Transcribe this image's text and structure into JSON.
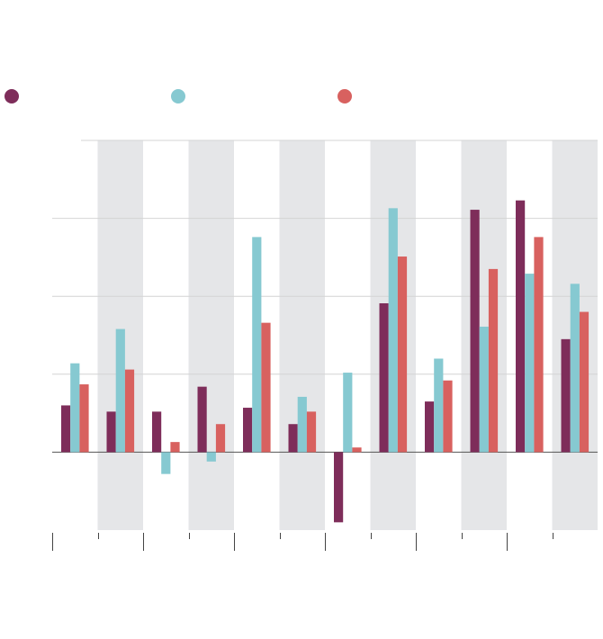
{
  "chart_data": {
    "type": "bar",
    "categories": [
      null,
      null,
      null,
      null,
      null,
      null,
      null,
      null,
      null,
      null,
      null,
      null
    ],
    "series": [
      {
        "color": "#7e2d5a",
        "values": [
          0.6,
          0.52,
          0.52,
          0.84,
          0.57,
          0.36,
          -0.9,
          1.91,
          0.65,
          3.11,
          3.23,
          1.45
        ]
      },
      {
        "color": "#86c9d1",
        "values": [
          1.14,
          1.58,
          -0.28,
          -0.12,
          2.76,
          0.71,
          1.02,
          3.13,
          1.2,
          1.61,
          2.29,
          2.16
        ]
      },
      {
        "color": "#d8615f",
        "values": [
          0.87,
          1.06,
          0.13,
          0.36,
          1.66,
          0.52,
          0.06,
          2.51,
          0.92,
          2.35,
          2.76,
          1.8
        ]
      }
    ],
    "ylim": [
      -1,
      4
    ],
    "yticks": [
      0,
      1,
      2,
      3,
      4
    ],
    "grid": true,
    "legend": "top-left"
  }
}
